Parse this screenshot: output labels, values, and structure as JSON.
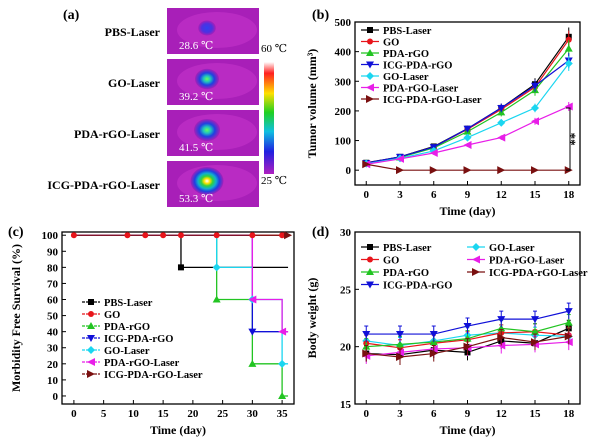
{
  "panel_letters": [
    "(a)",
    "(b)",
    "(c)",
    "(d)"
  ],
  "thermal": {
    "rows": [
      {
        "label": "PBS-Laser",
        "temp": "28.6 ℃",
        "hot": 0.08
      },
      {
        "label": "GO-Laser",
        "temp": "39.2 ℃",
        "hot": 0.4
      },
      {
        "label": "PDA-rGO-Laser",
        "temp": "41.5 ℃",
        "hot": 0.5
      },
      {
        "label": "ICG-PDA-rGO-Laser",
        "temp": "53.3 ℃",
        "hot": 0.85
      }
    ],
    "scale_max": "60 ℃",
    "scale_min": "25 ℃"
  },
  "colors": {
    "PBS-Laser": "#000000",
    "GO": "#e8151b",
    "PDA-rGO": "#22c422",
    "ICG-PDA-rGO": "#1010d8",
    "GO-Laser": "#1ad6f0",
    "PDA-rGO-Laser": "#e81ee8",
    "ICG-PDA-rGO-Laser": "#7a1010"
  },
  "chart_data": [
    {
      "type": "line",
      "xlabel": "Time (day)",
      "ylabel": "Tumor volume (mm³)",
      "x": [
        0,
        3,
        6,
        9,
        12,
        15,
        18
      ],
      "xlim": [
        -1,
        19
      ],
      "ylim": [
        -50,
        500
      ],
      "yticks": [
        0,
        100,
        200,
        300,
        400,
        500
      ],
      "significance": "**",
      "legend_position": "top-left",
      "series": [
        {
          "name": "PBS-Laser",
          "values": [
            25,
            45,
            80,
            140,
            210,
            290,
            450
          ]
        },
        {
          "name": "GO",
          "values": [
            24,
            44,
            78,
            138,
            205,
            280,
            440
          ]
        },
        {
          "name": "PDA-rGO",
          "values": [
            23,
            43,
            75,
            130,
            195,
            270,
            410
          ]
        },
        {
          "name": "ICG-PDA-rGO",
          "values": [
            24,
            45,
            78,
            140,
            210,
            285,
            370
          ]
        },
        {
          "name": "GO-Laser",
          "values": [
            22,
            40,
            65,
            110,
            160,
            210,
            360
          ]
        },
        {
          "name": "PDA-rGO-Laser",
          "values": [
            20,
            38,
            58,
            85,
            110,
            165,
            215
          ]
        },
        {
          "name": "ICG-PDA-rGO-Laser",
          "values": [
            20,
            0,
            0,
            0,
            0,
            0,
            0
          ]
        }
      ]
    },
    {
      "type": "line",
      "xlabel": "Time (day)",
      "ylabel": "Morbidity Free Survival (%)",
      "xlim": [
        -2,
        37
      ],
      "ylim": [
        -5,
        102
      ],
      "xticks": [
        0,
        5,
        10,
        15,
        20,
        25,
        30,
        35
      ],
      "yticks": [
        0,
        10,
        20,
        30,
        40,
        50,
        60,
        70,
        80,
        90,
        100
      ],
      "legend_position": "lower-left",
      "series": [
        {
          "name": "PBS-Laser",
          "x": [
            0,
            9,
            12,
            15,
            18,
            18,
            36
          ],
          "values": [
            100,
            100,
            100,
            100,
            100,
            80,
            80
          ]
        },
        {
          "name": "GO",
          "x": [
            0,
            9,
            12,
            15,
            18,
            36
          ],
          "values": [
            100,
            100,
            100,
            100,
            100,
            100
          ]
        },
        {
          "name": "PDA-rGO",
          "x": [
            0,
            24,
            24,
            30,
            30,
            35,
            35,
            36
          ],
          "values": [
            100,
            100,
            60,
            60,
            20,
            20,
            0,
            0
          ]
        },
        {
          "name": "ICG-PDA-rGO",
          "x": [
            0,
            30,
            30,
            36
          ],
          "values": [
            100,
            100,
            40,
            40
          ]
        },
        {
          "name": "GO-Laser",
          "x": [
            0,
            24,
            24,
            30,
            30,
            35,
            35,
            36
          ],
          "values": [
            100,
            100,
            80,
            80,
            60,
            60,
            20,
            20
          ]
        },
        {
          "name": "PDA-rGO-Laser",
          "x": [
            0,
            30,
            30,
            35,
            35,
            36
          ],
          "values": [
            100,
            100,
            60,
            60,
            40,
            40
          ]
        },
        {
          "name": "ICG-PDA-rGO-Laser",
          "x": [
            0,
            36
          ],
          "values": [
            100,
            100
          ]
        }
      ]
    },
    {
      "type": "line",
      "xlabel": "Time (day)",
      "ylabel": "Body weight (g)",
      "x": [
        0,
        3,
        6,
        9,
        12,
        15,
        18
      ],
      "xlim": [
        -1,
        19
      ],
      "ylim": [
        15,
        30
      ],
      "yticks": [
        15,
        20,
        25,
        30
      ],
      "legend_position": "top",
      "series": [
        {
          "name": "PBS-Laser",
          "values": [
            19.4,
            19.3,
            19.7,
            19.5,
            20.5,
            20.3,
            21.6
          ]
        },
        {
          "name": "GO-Laser",
          "values": [
            20.5,
            20.1,
            20.5,
            21.0,
            21.2,
            21.0,
            20.9
          ]
        },
        {
          "name": "GO",
          "values": [
            20.3,
            19.9,
            20.3,
            20.6,
            21.2,
            21.3,
            21.0
          ]
        },
        {
          "name": "PDA-rGO-Laser",
          "values": [
            19.2,
            19.5,
            19.8,
            19.9,
            20.1,
            20.2,
            20.4
          ]
        },
        {
          "name": "PDA-rGO",
          "values": [
            20.0,
            20.2,
            20.4,
            20.7,
            21.6,
            21.3,
            22.1
          ]
        },
        {
          "name": "ICG-PDA-rGO-Laser",
          "values": [
            19.4,
            19.1,
            19.4,
            20.0,
            20.8,
            20.4,
            20.9
          ]
        },
        {
          "name": "ICG-PDA-rGO",
          "values": [
            21.1,
            21.1,
            21.1,
            21.8,
            22.4,
            22.4,
            23.1
          ]
        }
      ]
    }
  ]
}
